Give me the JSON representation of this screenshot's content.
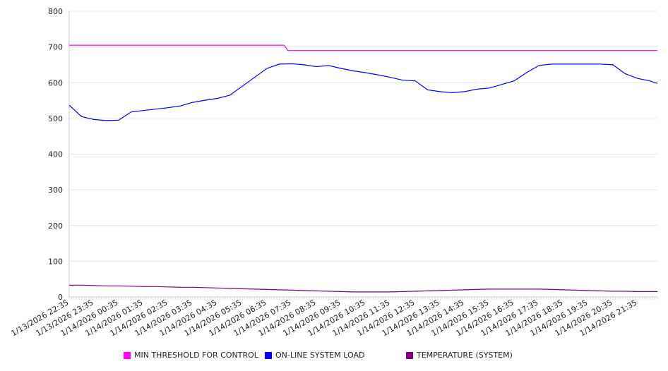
{
  "chart_data": {
    "type": "line",
    "title": "",
    "xlabel": "",
    "ylabel": "",
    "ylim": [
      0,
      800
    ],
    "yticks": [
      "0",
      "100",
      "200",
      "300",
      "400",
      "500",
      "600",
      "700",
      "800"
    ],
    "x_unit": "hours since 1/13/2026 22:35",
    "xlim": [
      0,
      23.8
    ],
    "xtick_labels": [
      "1/13/2026 22:35",
      "1/13/2026 23:35",
      "1/14/2026 00:35",
      "1/14/2026 01:35",
      "1/14/2026 02:35",
      "1/14/2026 03:35",
      "1/14/2026 04:35",
      "1/14/2026 05:35",
      "1/14/2026 06:35",
      "1/14/2026 07:35",
      "1/14/2026 08:35",
      "1/14/2026 09:35",
      "1/14/2026 10:35",
      "1/14/2026 11:35",
      "1/14/2026 12:35",
      "1/14/2026 13:35",
      "1/14/2026 14:35",
      "1/14/2026 15:35",
      "1/14/2026 16:35",
      "1/14/2026 17:35",
      "1/14/2026 18:35",
      "1/14/2026 19:35",
      "1/14/2026 20:35",
      "1/14/2026 21:35"
    ],
    "grid": true,
    "legend_position": "bottom",
    "series": [
      {
        "name": "MIN THRESHOLD FOR CONTROL",
        "color": "#ff00ff",
        "x": [
          0,
          8.7,
          8.85,
          23.8
        ],
        "values": [
          705,
          705,
          690,
          690
        ]
      },
      {
        "name": "ON-LINE SYSTEM LOAD",
        "color": "#0000ff",
        "x": [
          0,
          0.5,
          1,
          1.5,
          2,
          2.5,
          3,
          3.5,
          4,
          4.5,
          5,
          5.5,
          6,
          6.5,
          7,
          7.5,
          8,
          8.5,
          9,
          9.5,
          10,
          10.5,
          11,
          11.5,
          12,
          12.5,
          13,
          13.5,
          14,
          14.5,
          15,
          15.5,
          16,
          16.5,
          17,
          17.5,
          18,
          18.5,
          19,
          19.5,
          20,
          20.5,
          21,
          21.5,
          22,
          22.5,
          23,
          23.5,
          23.8
        ],
        "values": [
          537,
          505,
          497,
          494,
          495,
          518,
          522,
          526,
          530,
          535,
          545,
          551,
          556,
          565,
          590,
          615,
          640,
          652,
          653,
          650,
          645,
          648,
          640,
          633,
          628,
          622,
          615,
          607,
          605,
          580,
          575,
          572,
          575,
          582,
          585,
          595,
          605,
          628,
          648,
          652,
          652,
          652,
          652,
          652,
          650,
          625,
          612,
          605,
          598
        ]
      },
      {
        "name": "TEMPERATURE (SYSTEM)",
        "color": "#800080",
        "x": [
          0,
          0.5,
          1,
          1.5,
          2,
          2.5,
          3,
          3.5,
          4,
          4.5,
          5,
          5.5,
          6,
          6.5,
          7,
          7.5,
          8,
          8.5,
          9,
          9.5,
          10,
          10.5,
          11,
          11.5,
          12,
          12.5,
          13,
          13.5,
          14,
          14.5,
          15,
          15.5,
          16,
          16.5,
          17,
          17.5,
          18,
          18.5,
          19,
          19.5,
          20,
          20.5,
          21,
          21.5,
          22,
          22.5,
          23,
          23.5,
          23.8
        ],
        "values": [
          33,
          33,
          32,
          31,
          31,
          30,
          29,
          29,
          28,
          27,
          27,
          26,
          25,
          24,
          23,
          22,
          21,
          20,
          19,
          18,
          17,
          16,
          15,
          14,
          14,
          14,
          14,
          15,
          16,
          17,
          18,
          19,
          20,
          21,
          22,
          22,
          22,
          22,
          22,
          21,
          20,
          19,
          18,
          17,
          16,
          16,
          15,
          15,
          15
        ]
      }
    ]
  }
}
